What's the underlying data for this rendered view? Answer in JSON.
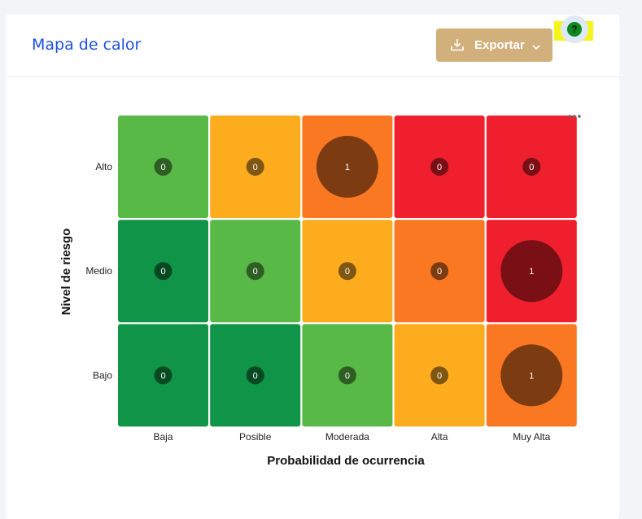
{
  "header": {
    "title": "Mapa de calor",
    "export_label": "Exportar",
    "help_label": "?"
  },
  "colors": {
    "title": "#1b50e0",
    "export_button": "#d2b07c",
    "help_highlight": "#f5f51a",
    "dark_green": "#109447",
    "light_green": "#58b947",
    "yellow": "#fdac1e",
    "orange": "#fb7823",
    "red": "#ef1f2d"
  },
  "icons": {
    "export": "download-icon",
    "dropdown": "chevron-down-icon",
    "menu": "more-horizontal-icon"
  },
  "chart_data": {
    "type": "heatmap",
    "title": "",
    "xlabel": "Probabilidad de ocurrencia",
    "ylabel": "Nivel de riesgo",
    "x_categories": [
      "Baja",
      "Posible",
      "Moderada",
      "Alta",
      "Muy Alta"
    ],
    "y_categories": [
      "Alto",
      "Medio",
      "Bajo"
    ],
    "cell_colors": [
      [
        "light_green",
        "yellow",
        "orange",
        "red",
        "red"
      ],
      [
        "dark_green",
        "light_green",
        "yellow",
        "orange",
        "red"
      ],
      [
        "dark_green",
        "dark_green",
        "light_green",
        "yellow",
        "orange"
      ]
    ],
    "values": [
      [
        0,
        0,
        1,
        0,
        0
      ],
      [
        0,
        0,
        0,
        0,
        1
      ],
      [
        0,
        0,
        0,
        0,
        1
      ]
    ]
  }
}
